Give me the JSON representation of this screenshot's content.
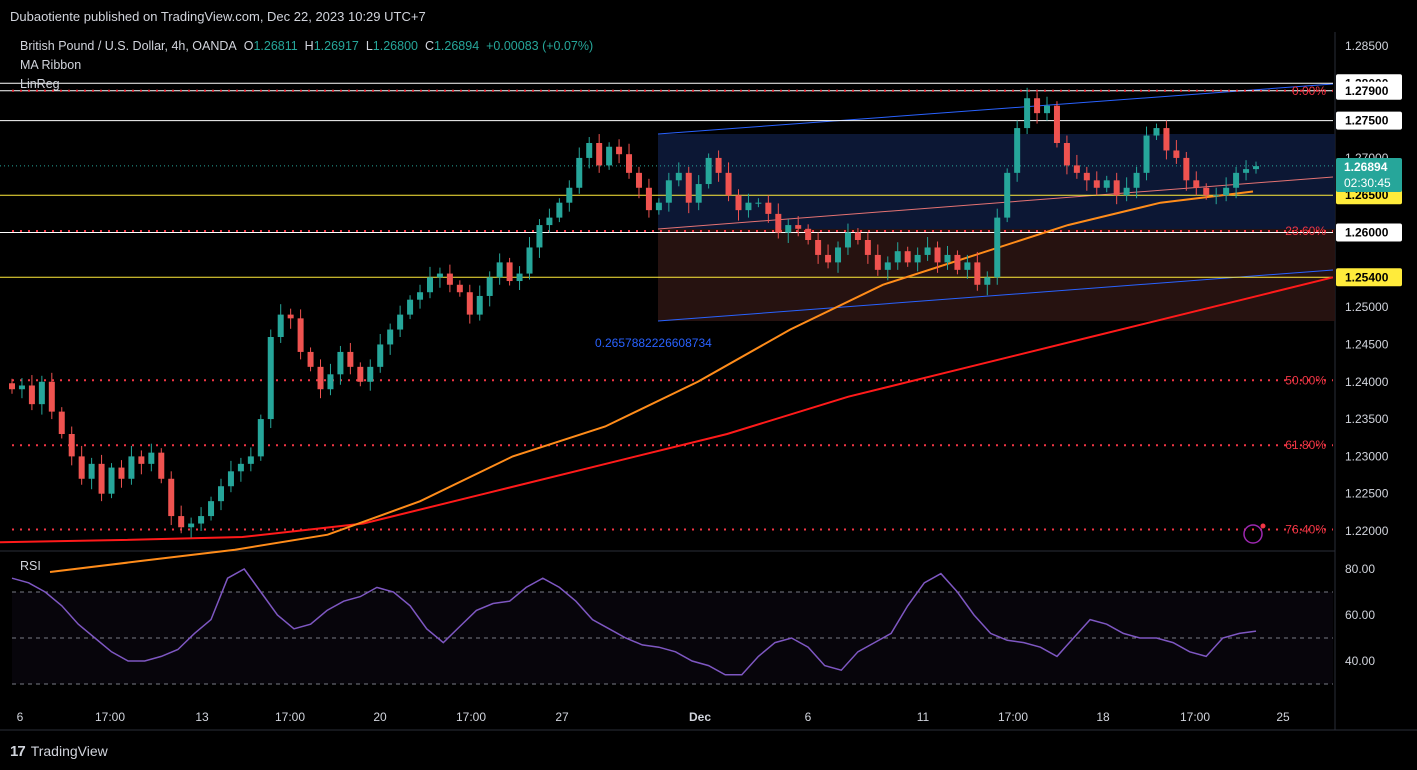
{
  "header": {
    "published": "Dubaotiente published on TradingView.com, Dec 22, 2023 10:29 UTC+7"
  },
  "legend": {
    "symbol": "British Pound / U.S. Dollar, 4h, OANDA",
    "o_label": "O",
    "o": "1.26811",
    "h_label": "H",
    "h": "1.26917",
    "l_label": "L",
    "l": "1.26800",
    "c_label": "C",
    "c": "1.26894",
    "change": "+0.00083 (+0.07%)",
    "indicator1": "MA Ribbon",
    "indicator2": "LinReg"
  },
  "rsi": {
    "label": "RSI"
  },
  "footer": {
    "brand": "TradingView"
  },
  "colors": {
    "up": "#26a69a",
    "down": "#ef5350",
    "ma_fast": "#ff8c1a",
    "ma_slow": "#ff1a1a",
    "rsi": "#7e57c2",
    "channel": "#2962ff",
    "fib": "#f23645"
  },
  "price_badge": {
    "value": "1.26894",
    "countdown": "02:30:45"
  },
  "chart_data": {
    "type": "candlestick",
    "timeframe": "4h",
    "symbol": "GBPUSD",
    "y_axis": {
      "ylim": [
        1.2175,
        1.2875
      ],
      "ticks": [
        "1.28500",
        "1.28000",
        "1.27900",
        "1.27500",
        "1.27000",
        "1.26894",
        "1.26500",
        "1.26000",
        "1.25400",
        "1.25000",
        "1.24500",
        "1.24000",
        "1.23500",
        "1.23000",
        "1.22500",
        "1.22000"
      ]
    },
    "x_axis": {
      "ticks": [
        "6",
        "17:00",
        "13",
        "17:00",
        "20",
        "17:00",
        "27",
        "Dec",
        "6",
        "11",
        "17:00",
        "18",
        "17:00",
        "25"
      ]
    },
    "close_path": [
      1.239,
      1.2395,
      1.237,
      1.24,
      1.236,
      1.233,
      1.23,
      1.227,
      1.229,
      1.225,
      1.2285,
      1.227,
      1.23,
      1.229,
      1.2305,
      1.227,
      1.222,
      1.2205,
      1.221,
      1.222,
      1.224,
      1.226,
      1.228,
      1.229,
      1.23,
      1.235,
      1.246,
      1.249,
      1.2485,
      1.244,
      1.242,
      1.239,
      1.241,
      1.244,
      1.242,
      1.24,
      1.242,
      1.245,
      1.247,
      1.249,
      1.251,
      1.252,
      1.254,
      1.2545,
      1.253,
      1.252,
      1.249,
      1.2515,
      1.254,
      1.256,
      1.2535,
      1.2545,
      1.258,
      1.261,
      1.262,
      1.264,
      1.266,
      1.27,
      1.272,
      1.269,
      1.2715,
      1.2705,
      1.268,
      1.266,
      1.263,
      1.264,
      1.267,
      1.268,
      1.264,
      1.2665,
      1.27,
      1.268,
      1.265,
      1.263,
      1.264,
      1.264,
      1.2625,
      1.26,
      1.261,
      1.2605,
      1.259,
      1.257,
      1.256,
      1.258,
      1.26,
      1.259,
      1.257,
      1.255,
      1.256,
      1.2575,
      1.256,
      1.257,
      1.258,
      1.256,
      1.257,
      1.255,
      1.256,
      1.253,
      1.254,
      1.262,
      1.268,
      1.274,
      1.278,
      1.276,
      1.277,
      1.272,
      1.269,
      1.268,
      1.267,
      1.266,
      1.267,
      1.265,
      1.266,
      1.268,
      1.273,
      1.274,
      1.271,
      1.27,
      1.267,
      1.266,
      1.265,
      1.265,
      1.266,
      1.268,
      1.2685,
      1.2689
    ],
    "ma_fast": [
      1.2145,
      1.216,
      1.2175,
      1.2195,
      1.224,
      1.23,
      1.234,
      1.24,
      1.247,
      1.253,
      1.257,
      1.261,
      1.264,
      1.2655
    ],
    "ma_slow": [
      1.2185,
      1.2188,
      1.2192,
      1.221,
      1.225,
      1.229,
      1.233,
      1.238,
      1.242,
      1.246,
      1.25,
      1.254
    ],
    "rsi_values": [
      76,
      74,
      70,
      64,
      56,
      50,
      44,
      40,
      40,
      42,
      45,
      52,
      58,
      76,
      80,
      70,
      60,
      54,
      56,
      62,
      66,
      68,
      72,
      70,
      64,
      54,
      48,
      55,
      62,
      65,
      66,
      72,
      76,
      72,
      66,
      58,
      54,
      50,
      47,
      46,
      44,
      40,
      38,
      34,
      34,
      42,
      48,
      50,
      46,
      38,
      36,
      44,
      48,
      52,
      64,
      74,
      78,
      70,
      60,
      52,
      49,
      48,
      46,
      42,
      50,
      58,
      56,
      52,
      50,
      50,
      48,
      44,
      42,
      50,
      52,
      53
    ],
    "rsi_levels": {
      "upper": 70,
      "middle": 50,
      "lower": 30
    },
    "rsi_ticks": [
      "80.00",
      "60.00",
      "40.00"
    ],
    "horizontal_levels": [
      "1.28000",
      "1.27900",
      "1.27500",
      "1.26500",
      "1.26000",
      "1.25400"
    ],
    "fib_levels": [
      {
        "label": "0.00%",
        "price": 1.279
      },
      {
        "label": "23.60%",
        "price": 1.2602
      },
      {
        "label": "50.00%",
        "price": 1.2402
      },
      {
        "label": "61.80%",
        "price": 1.2315
      },
      {
        "label": "76.40%",
        "price": 1.2202
      }
    ],
    "channel_label": "0.2657882226608734"
  }
}
